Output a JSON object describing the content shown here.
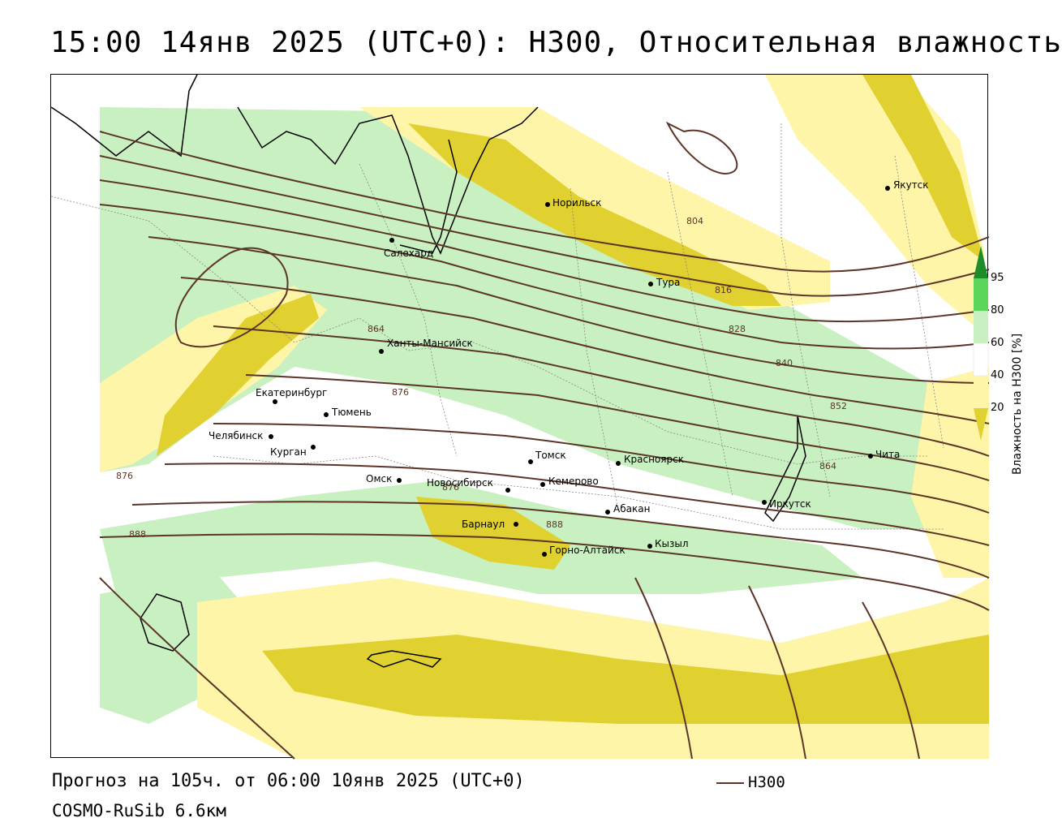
{
  "header": {
    "title": "15:00 14янв 2025 (UTC+0): H300, Относительная влажность"
  },
  "footer": {
    "forecast": "Прогноз на 105ч. от 06:00 10янв 2025 (UTC+0)",
    "model": "COSMO-RuSib 6.6км",
    "legend_label": "H300"
  },
  "colorbar": {
    "title": "Влажность на H300 [%]",
    "ticks": [
      "95",
      "80",
      "60",
      "40",
      "20"
    ],
    "colors": {
      "c95": "#1e8c28",
      "c80": "#5bd65b",
      "c60": "#c8f0c0",
      "c40": "#ffffff",
      "c20a": "#fff5a8",
      "c20b": "#e0d030"
    }
  },
  "contour_labels": [
    "804",
    "816",
    "828",
    "840",
    "852",
    "864",
    "876",
    "864",
    "876",
    "876",
    "888",
    "888"
  ],
  "cities": [
    {
      "name": "Якутск"
    },
    {
      "name": "Норильск"
    },
    {
      "name": "Салехард"
    },
    {
      "name": "Тура"
    },
    {
      "name": "Ханты-Мансийск"
    },
    {
      "name": "Екатеринбург"
    },
    {
      "name": "Тюмень"
    },
    {
      "name": "Челябинск"
    },
    {
      "name": "Курган"
    },
    {
      "name": "Омск"
    },
    {
      "name": "Новосибирск"
    },
    {
      "name": "Томск"
    },
    {
      "name": "Кемерово"
    },
    {
      "name": "Красноярск"
    },
    {
      "name": "Абакан"
    },
    {
      "name": "Барнаул"
    },
    {
      "name": "Горно-Алтайск"
    },
    {
      "name": "Кызыл"
    },
    {
      "name": "Иркутск"
    },
    {
      "name": "Чита"
    }
  ],
  "colors": {
    "contour": "#5a3528",
    "moist_green": "#c8f0c0",
    "dry_yellow_light": "#fff5a8",
    "dry_yellow_dark": "#e0d030"
  }
}
